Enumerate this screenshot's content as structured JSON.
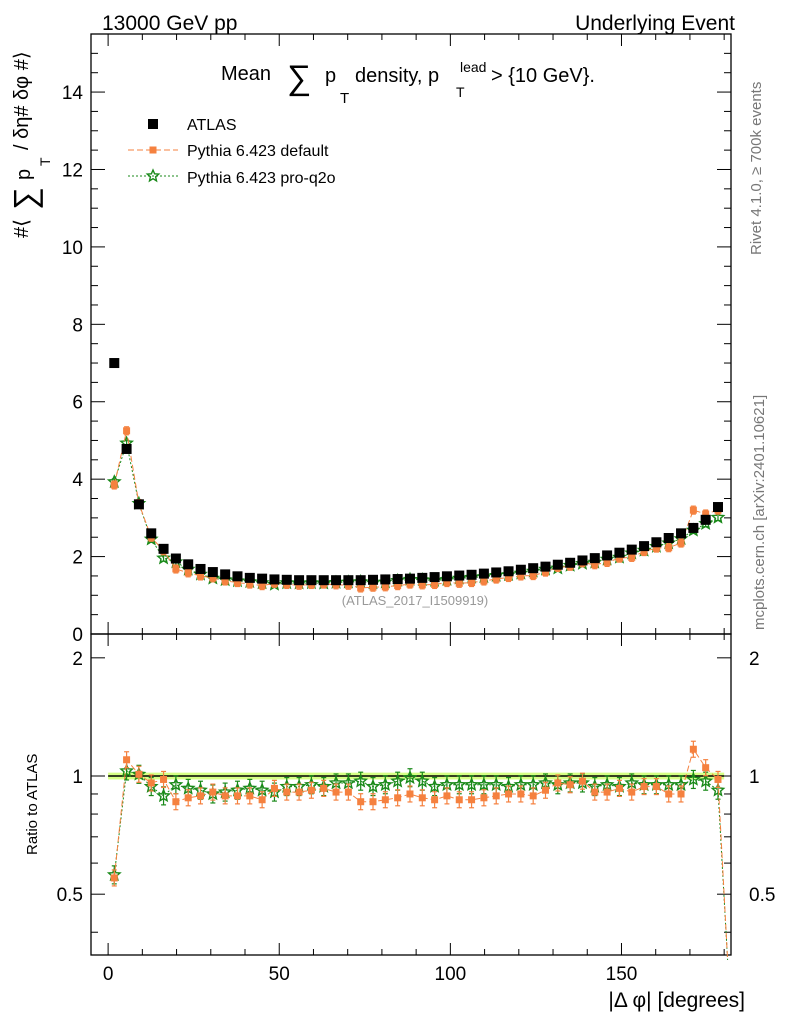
{
  "header": {
    "left": "13000 GeV pp",
    "right": "Underlying Event"
  },
  "side_labels": {
    "rivet": "Rivet 4.1.0, ≥ 700k events",
    "mcplots": "mcplots.cern.ch [arXiv:2401.10621]"
  },
  "colors": {
    "atlas": "#000000",
    "default": "#f5813f",
    "proq2o": "#1a8a1a",
    "band_fill": "#ccff66",
    "band_line": "#7fbf00"
  },
  "chart_data": [
    {
      "type": "scatter",
      "panel": "main",
      "title_parts": {
        "mean": "Mean",
        "sum": "∑",
        "p": "p",
        "sub_t": "T",
        "density": "density, p",
        "sup_lead": "lead",
        "tail": "> {10 GeV}."
      },
      "ylabel_parts": {
        "hash_open": "#⟨",
        "sum": "∑",
        "p": "p",
        "sub_t": "T",
        "rest": "/ δη# δφ #⟩"
      },
      "watermark": "(ATLAS_2017_I1509919)",
      "xlim": [
        -5,
        182
      ],
      "ylim": [
        0,
        15.5
      ],
      "y_ticks": [
        "0",
        "2",
        "4",
        "6",
        "8",
        "10",
        "12",
        "14"
      ],
      "legend": [
        {
          "key": "atlas",
          "label": "ATLAS"
        },
        {
          "key": "default",
          "label": "Pythia 6.423 default"
        },
        {
          "key": "proq2o",
          "label": "Pythia 6.423 pro-q2o"
        }
      ],
      "x": [
        1.8,
        5.4,
        9.0,
        12.6,
        16.2,
        19.8,
        23.4,
        27.0,
        30.6,
        34.2,
        37.8,
        41.4,
        45.0,
        48.6,
        52.2,
        55.8,
        59.4,
        63.0,
        66.6,
        70.2,
        73.8,
        77.4,
        81.0,
        84.6,
        88.2,
        91.8,
        95.4,
        99.0,
        102.6,
        106.2,
        109.8,
        113.4,
        117.0,
        120.6,
        124.2,
        127.8,
        131.4,
        135.0,
        138.6,
        142.2,
        145.8,
        149.4,
        153.0,
        156.6,
        160.2,
        163.8,
        167.4,
        171.0,
        174.6,
        178.2
      ],
      "series": [
        {
          "name": "ATLAS",
          "key": "atlas",
          "marker": "square",
          "values": [
            7.0,
            4.78,
            3.35,
            2.6,
            2.2,
            1.95,
            1.8,
            1.68,
            1.6,
            1.54,
            1.49,
            1.45,
            1.43,
            1.41,
            1.4,
            1.39,
            1.39,
            1.39,
            1.39,
            1.39,
            1.39,
            1.4,
            1.41,
            1.42,
            1.43,
            1.45,
            1.47,
            1.49,
            1.51,
            1.53,
            1.56,
            1.59,
            1.62,
            1.66,
            1.7,
            1.74,
            1.79,
            1.84,
            1.9,
            1.96,
            2.03,
            2.1,
            2.18,
            2.27,
            2.37,
            2.48,
            2.6,
            2.74,
            2.95,
            3.28
          ]
        },
        {
          "name": "Pythia 6.423 default",
          "key": "default",
          "marker": "square",
          "values": [
            3.85,
            5.25,
            3.37,
            2.5,
            2.15,
            1.68,
            1.58,
            1.5,
            1.45,
            1.37,
            1.33,
            1.29,
            1.25,
            1.31,
            1.28,
            1.26,
            1.28,
            1.29,
            1.27,
            1.26,
            1.19,
            1.21,
            1.22,
            1.25,
            1.29,
            1.27,
            1.28,
            1.33,
            1.31,
            1.33,
            1.37,
            1.42,
            1.46,
            1.5,
            1.51,
            1.6,
            1.72,
            1.75,
            1.84,
            1.79,
            1.85,
            1.96,
            1.98,
            2.13,
            2.22,
            2.23,
            2.35,
            3.2,
            3.1,
            3.2
          ]
        },
        {
          "name": "Pythia 6.423 pro-q2o",
          "key": "proq2o",
          "marker": "star",
          "values": [
            3.93,
            4.93,
            3.37,
            2.45,
            1.96,
            1.86,
            1.67,
            1.54,
            1.44,
            1.4,
            1.37,
            1.35,
            1.32,
            1.28,
            1.32,
            1.31,
            1.32,
            1.31,
            1.33,
            1.34,
            1.35,
            1.32,
            1.34,
            1.38,
            1.41,
            1.4,
            1.38,
            1.41,
            1.44,
            1.46,
            1.48,
            1.51,
            1.53,
            1.57,
            1.62,
            1.67,
            1.7,
            1.77,
            1.82,
            1.85,
            1.93,
            1.98,
            2.09,
            2.16,
            2.26,
            2.35,
            2.46,
            2.68,
            2.85,
            3.01
          ]
        }
      ]
    },
    {
      "type": "scatter",
      "panel": "ratio",
      "ylabel": "Ratio to ATLAS",
      "xlabel": "|Δ φ| [degrees]",
      "xlim": [
        -5,
        182
      ],
      "ylim": [
        0.35,
        2.3
      ],
      "y_ticks": [
        "0.5",
        "1",
        "2"
      ],
      "x_ticks": [
        "0",
        "50",
        "100",
        "150"
      ],
      "band": {
        "center": 1.0,
        "half_width": 0.02
      },
      "x": [
        1.8,
        5.4,
        9.0,
        12.6,
        16.2,
        19.8,
        23.4,
        27.0,
        30.6,
        34.2,
        37.8,
        41.4,
        45.0,
        48.6,
        52.2,
        55.8,
        59.4,
        63.0,
        66.6,
        70.2,
        73.8,
        77.4,
        81.0,
        84.6,
        88.2,
        91.8,
        95.4,
        99.0,
        102.6,
        106.2,
        109.8,
        113.4,
        117.0,
        120.6,
        124.2,
        127.8,
        131.4,
        135.0,
        138.6,
        142.2,
        145.8,
        149.4,
        153.0,
        156.6,
        160.2,
        163.8,
        167.4,
        171.0,
        174.6,
        178.2
      ],
      "series": [
        {
          "name": "Pythia 6.423 default",
          "key": "default",
          "marker": "square",
          "values": [
            0.55,
            1.1,
            1.01,
            0.96,
            0.98,
            0.86,
            0.88,
            0.89,
            0.91,
            0.89,
            0.89,
            0.89,
            0.87,
            0.93,
            0.91,
            0.91,
            0.92,
            0.93,
            0.91,
            0.91,
            0.86,
            0.86,
            0.87,
            0.88,
            0.9,
            0.88,
            0.87,
            0.89,
            0.87,
            0.87,
            0.88,
            0.89,
            0.9,
            0.9,
            0.89,
            0.92,
            0.96,
            0.95,
            0.97,
            0.91,
            0.91,
            0.93,
            0.91,
            0.94,
            0.94,
            0.9,
            0.9,
            1.17,
            1.05,
            0.98
          ]
        },
        {
          "name": "Pythia 6.423 pro-q2o",
          "key": "proq2o",
          "marker": "star",
          "values": [
            0.56,
            1.03,
            1.01,
            0.94,
            0.89,
            0.95,
            0.93,
            0.92,
            0.9,
            0.91,
            0.92,
            0.93,
            0.92,
            0.91,
            0.94,
            0.94,
            0.95,
            0.94,
            0.96,
            0.96,
            0.97,
            0.94,
            0.95,
            0.97,
            0.99,
            0.97,
            0.94,
            0.95,
            0.95,
            0.95,
            0.95,
            0.95,
            0.94,
            0.95,
            0.95,
            0.96,
            0.95,
            0.96,
            0.96,
            0.94,
            0.95,
            0.94,
            0.96,
            0.95,
            0.95,
            0.95,
            0.95,
            0.98,
            0.97,
            0.92
          ]
        }
      ]
    }
  ]
}
